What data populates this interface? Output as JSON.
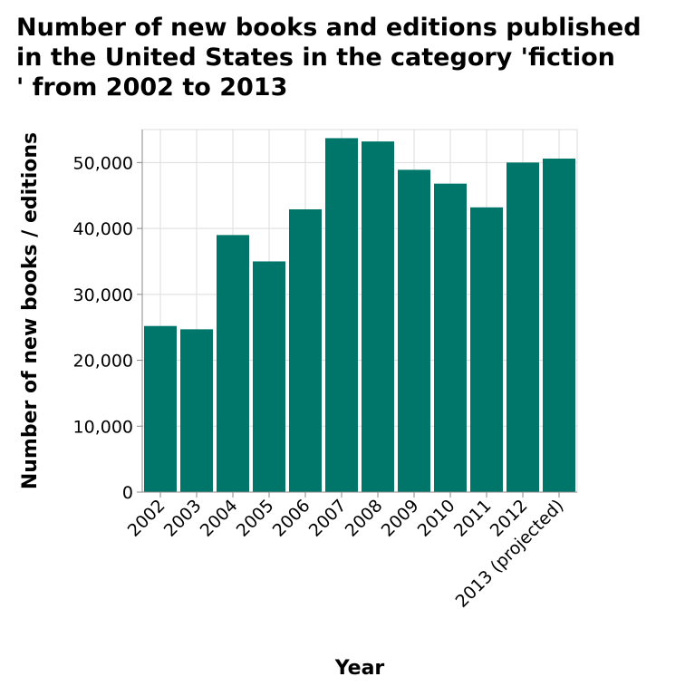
{
  "chart_data": {
    "type": "bar",
    "title": "Number of new books and editions published in the United States in the category 'fiction ' from 2002 to 2013",
    "title_lines": [
      "Number of new books and editions published",
      "in the United States in the category 'fiction",
      "' from 2002 to 2013"
    ],
    "xlabel": "Year",
    "ylabel": "Number of new books / editions",
    "categories": [
      "2002",
      "2003",
      "2004",
      "2005",
      "2006",
      "2007",
      "2008",
      "2009",
      "2010",
      "2011",
      "2012",
      "2013 (projected)"
    ],
    "values": [
      25200,
      24700,
      39000,
      35000,
      42900,
      53700,
      53200,
      48900,
      46800,
      43200,
      50000,
      50600
    ],
    "ylim": [
      0,
      55000
    ],
    "yticks": [
      0,
      10000,
      20000,
      30000,
      40000,
      50000
    ],
    "ytick_labels": [
      "0",
      "10,000",
      "20,000",
      "30,000",
      "40,000",
      "50,000"
    ],
    "grid": true,
    "bar_color": "#00756a"
  }
}
